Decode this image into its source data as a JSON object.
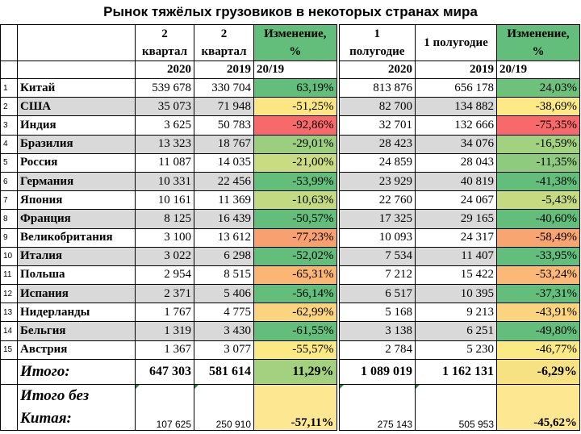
{
  "title": "Рынок тяжёлых грузовиков в некоторых странах мира",
  "headers": {
    "q2_2020_line1": "2",
    "q2_2020_line2": "квартал",
    "q2_2019_line1": "2",
    "q2_2019_line2": "квартал",
    "change_q_line1": "Изменение,",
    "change_q_line2": "%",
    "h1_2020_line1": "1",
    "h1_2020_line2": "полугодие",
    "h1_2019": "1 полугодие",
    "change_h_line1": "Изменение,",
    "change_h_line2": "%",
    "year_2020_a": "2020",
    "year_2019_a": "2019",
    "ratio_a": "20/19",
    "year_2020_b": "2020",
    "year_2019_b": "2019",
    "ratio_b": "20/19"
  },
  "rows": [
    {
      "n": "1",
      "country": "Китай",
      "q2_2020": "539 678",
      "q2_2019": "330 704",
      "q_change": "63,19%",
      "h1_2020": "813 876",
      "h1_2019": "656 178",
      "h_change": "24,03%",
      "q_color": "#63be7b",
      "h_color": "#6ec17b"
    },
    {
      "n": "2",
      "country": "США",
      "q2_2020": "35 073",
      "q2_2019": "71 948",
      "q_change": "-51,25%",
      "h1_2020": "82 700",
      "h1_2019": "134 882",
      "h_change": "-38,69%",
      "q_color": "#fce683",
      "h_color": "#fde986"
    },
    {
      "n": "3",
      "country": "Индия",
      "q2_2020": "3 625",
      "q2_2019": "50 783",
      "q_change": "-92,86%",
      "h1_2020": "32 701",
      "h1_2019": "132 666",
      "h_change": "-75,35%",
      "q_color": "#f8696b",
      "h_color": "#f8696b"
    },
    {
      "n": "4",
      "country": "Бразилия",
      "q2_2020": "13 323",
      "q2_2019": "18 767",
      "q_change": "-29,01%",
      "h1_2020": "28 423",
      "h1_2019": "34 076",
      "h_change": "-16,59%",
      "q_color": "#9bcf7f",
      "h_color": "#a2d17f"
    },
    {
      "n": "5",
      "country": "Россия",
      "q2_2020": "11 087",
      "q2_2019": "14 035",
      "q_change": "-21,00%",
      "h1_2020": "24 859",
      "h1_2019": "28 043",
      "h_change": "-11,35%",
      "q_color": "#c9dc82",
      "h_color": "#8fcb7e"
    },
    {
      "n": "6",
      "country": "Германия",
      "q2_2020": "10 331",
      "q2_2019": "22 456",
      "q_change": "-53,99%",
      "h1_2020": "23 929",
      "h1_2019": "40 819",
      "h_change": "-41,38%",
      "q_color": "#63be7b",
      "h_color": "#63be7b"
    },
    {
      "n": "7",
      "country": "Япония",
      "q2_2020": "10 161",
      "q2_2019": "11 369",
      "q_change": "-10,63%",
      "h1_2020": "22 760",
      "h1_2019": "24 067",
      "h_change": "-5,43%",
      "q_color": "#c2da81",
      "h_color": "#c5db81"
    },
    {
      "n": "8",
      "country": "Франция",
      "q2_2020": "8 125",
      "q2_2019": "16 439",
      "q_change": "-50,57%",
      "h1_2020": "17 325",
      "h1_2019": "29 165",
      "h_change": "-40,60%",
      "q_color": "#63be7b",
      "h_color": "#63be7b"
    },
    {
      "n": "9",
      "country": "Великобритания",
      "q2_2020": "3 100",
      "q2_2019": "13 612",
      "q_change": "-77,23%",
      "h1_2020": "10 093",
      "h1_2019": "24 317",
      "h_change": "-58,49%",
      "q_color": "#f8a06f",
      "h_color": "#f9a571"
    },
    {
      "n": "10",
      "country": "Италия",
      "q2_2020": "3 022",
      "q2_2019": "6 298",
      "q_change": "-52,02%",
      "h1_2020": "7 534",
      "h1_2019": "11 407",
      "h_change": "-33,95%",
      "q_color": "#63be7b",
      "h_color": "#63be7b"
    },
    {
      "n": "11",
      "country": "Польша",
      "q2_2020": "2 954",
      "q2_2019": "8 515",
      "q_change": "-65,31%",
      "h1_2020": "7 212",
      "h1_2019": "15 422",
      "h_change": "-53,24%",
      "q_color": "#fbb676",
      "h_color": "#fbb877"
    },
    {
      "n": "12",
      "country": "Испания",
      "q2_2020": "2 371",
      "q2_2019": "5 406",
      "q_change": "-56,14%",
      "h1_2020": "6 517",
      "h1_2019": "10 395",
      "h_change": "-37,31%",
      "q_color": "#63be7b",
      "h_color": "#63be7b"
    },
    {
      "n": "13",
      "country": "Нидерланды",
      "q2_2020": "1 767",
      "q2_2019": "4 775",
      "q_change": "-62,99%",
      "h1_2020": "5 168",
      "h1_2019": "9 213",
      "h_change": "-43,91%",
      "q_color": "#fcd37f",
      "h_color": "#fcd47f"
    },
    {
      "n": "14",
      "country": "Бельгия",
      "q2_2020": "1 319",
      "q2_2019": "3 430",
      "q_change": "-61,55%",
      "h1_2020": "3 138",
      "h1_2019": "6 251",
      "h_change": "-49,80%",
      "q_color": "#63be7b",
      "h_color": "#63be7b"
    },
    {
      "n": "15",
      "country": "Австрия",
      "q2_2020": "1 367",
      "q2_2019": "3 077",
      "q_change": "-55,57%",
      "h1_2020": "2 784",
      "h1_2019": "5 230",
      "h_change": "-46,77%",
      "q_color": "#fbe983",
      "h_color": "#fbe983"
    }
  ],
  "total": {
    "label": "Итого:",
    "q2_2020": "647 303",
    "q2_2019": "581 614",
    "q_change": "11,29%",
    "h1_2020": "1 089 019",
    "h1_2019": "1 162 131",
    "h_change": "-6,29%",
    "q_color": "#a3d17f",
    "h_color": "#f6e283"
  },
  "total_ex_china": {
    "label_line1": "Итого без",
    "label_line2": "Китая:",
    "q2_2020": "107 625",
    "q2_2019": "250 910",
    "q_change": "-57,11%",
    "h1_2020": "275 143",
    "h1_2019": "505 953",
    "h_change": "-45,62%",
    "q_color": "#fde891",
    "h_color": "#fde891"
  }
}
